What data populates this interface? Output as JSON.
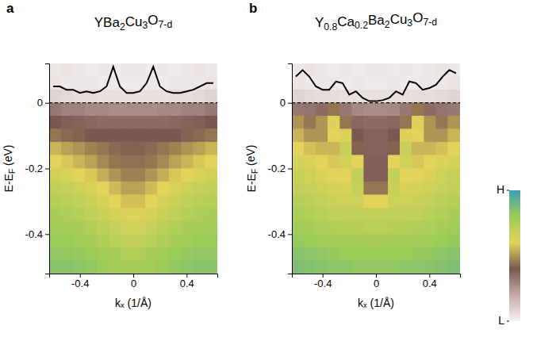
{
  "chart_data": [
    {
      "type": "heatmap",
      "panel": "a",
      "title": "YBa2Cu3O7-d",
      "x_label": "kₓ (1/Å)",
      "y_label": "E-EF (eV)",
      "xlim": [
        -0.63,
        0.63
      ],
      "ylim": [
        -0.52,
        0.12
      ],
      "xticks": [
        -0.4,
        0,
        0.4
      ],
      "yticks": [
        0,
        -0.2,
        -0.4
      ],
      "fermi_level": 0,
      "cell_x": [
        -0.585,
        -0.495,
        -0.405,
        -0.315,
        -0.225,
        -0.135,
        -0.045,
        0.045,
        0.135,
        0.225,
        0.315,
        0.405,
        0.495,
        0.585
      ],
      "cell_y": [
        0.1,
        0.06,
        0.02,
        -0.02,
        -0.06,
        -0.1,
        -0.14,
        -0.18,
        -0.22,
        -0.26,
        -0.3,
        -0.34,
        -0.38,
        -0.42,
        -0.46,
        -0.5
      ],
      "cells": [
        [
          0.03,
          0.04,
          0.03,
          0.02,
          0.03,
          0.02,
          0.03,
          0.03,
          0.02,
          0.03,
          0.02,
          0.03,
          0.04,
          0.03
        ],
        [
          0.04,
          0.03,
          0.03,
          0.03,
          0.02,
          0.03,
          0.02,
          0.02,
          0.03,
          0.02,
          0.03,
          0.03,
          0.03,
          0.04
        ],
        [
          0.08,
          0.07,
          0.06,
          0.06,
          0.05,
          0.05,
          0.05,
          0.05,
          0.05,
          0.05,
          0.06,
          0.06,
          0.07,
          0.08
        ],
        [
          0.32,
          0.3,
          0.3,
          0.28,
          0.28,
          0.27,
          0.27,
          0.27,
          0.27,
          0.28,
          0.28,
          0.3,
          0.3,
          0.32
        ],
        [
          0.4,
          0.38,
          0.37,
          0.36,
          0.35,
          0.35,
          0.35,
          0.35,
          0.35,
          0.35,
          0.36,
          0.37,
          0.38,
          0.4
        ],
        [
          0.45,
          0.43,
          0.42,
          0.4,
          0.4,
          0.4,
          0.4,
          0.4,
          0.4,
          0.4,
          0.4,
          0.42,
          0.43,
          0.45
        ],
        [
          0.55,
          0.52,
          0.5,
          0.47,
          0.45,
          0.43,
          0.42,
          0.42,
          0.43,
          0.45,
          0.47,
          0.5,
          0.52,
          0.55
        ],
        [
          0.6,
          0.58,
          0.55,
          0.52,
          0.48,
          0.45,
          0.44,
          0.44,
          0.45,
          0.48,
          0.52,
          0.55,
          0.58,
          0.6
        ],
        [
          0.65,
          0.63,
          0.6,
          0.58,
          0.54,
          0.5,
          0.47,
          0.47,
          0.5,
          0.54,
          0.58,
          0.6,
          0.63,
          0.65
        ],
        [
          0.7,
          0.68,
          0.66,
          0.63,
          0.6,
          0.56,
          0.52,
          0.52,
          0.56,
          0.6,
          0.63,
          0.66,
          0.68,
          0.7
        ],
        [
          0.73,
          0.72,
          0.7,
          0.67,
          0.64,
          0.6,
          0.57,
          0.57,
          0.6,
          0.64,
          0.67,
          0.7,
          0.72,
          0.73
        ],
        [
          0.76,
          0.75,
          0.73,
          0.7,
          0.67,
          0.64,
          0.62,
          0.62,
          0.64,
          0.67,
          0.7,
          0.73,
          0.75,
          0.76
        ],
        [
          0.78,
          0.77,
          0.76,
          0.74,
          0.71,
          0.68,
          0.66,
          0.66,
          0.68,
          0.71,
          0.74,
          0.76,
          0.77,
          0.78
        ],
        [
          0.8,
          0.8,
          0.78,
          0.77,
          0.75,
          0.72,
          0.7,
          0.7,
          0.72,
          0.75,
          0.77,
          0.78,
          0.8,
          0.8
        ],
        [
          0.82,
          0.82,
          0.81,
          0.8,
          0.78,
          0.76,
          0.74,
          0.74,
          0.76,
          0.78,
          0.8,
          0.81,
          0.82,
          0.82
        ],
        [
          0.84,
          0.84,
          0.83,
          0.82,
          0.8,
          0.78,
          0.77,
          0.77,
          0.78,
          0.8,
          0.82,
          0.83,
          0.84,
          0.84
        ]
      ],
      "x": [
        -0.6,
        -0.55,
        -0.5,
        -0.45,
        -0.4,
        -0.35,
        -0.3,
        -0.25,
        -0.2,
        -0.15,
        -0.1,
        -0.05,
        0,
        0.05,
        0.1,
        0.15,
        0.2,
        0.25,
        0.3,
        0.35,
        0.4,
        0.45,
        0.5,
        0.55,
        0.6
      ],
      "series": [
        {
          "type": "line",
          "color": "#000000",
          "values": [
            0.05,
            0.05,
            0.04,
            0.04,
            0.03,
            0.035,
            0.03,
            0.035,
            0.05,
            0.11,
            0.05,
            0.03,
            0.03,
            0.035,
            0.06,
            0.11,
            0.05,
            0.035,
            0.03,
            0.03,
            0.035,
            0.04,
            0.05,
            0.06,
            0.06
          ]
        }
      ]
    },
    {
      "type": "heatmap",
      "panel": "b",
      "title": "Y0.8Ca0.2Ba2Cu3O7-d",
      "x_label": "kₓ (1/Å)",
      "y_label": "E-EF (eV)",
      "xlim": [
        -0.63,
        0.63
      ],
      "ylim": [
        -0.52,
        0.12
      ],
      "xticks": [
        -0.4,
        0,
        0.4
      ],
      "yticks": [
        0,
        -0.2,
        -0.4
      ],
      "fermi_level": 0,
      "cell_x": [
        -0.585,
        -0.495,
        -0.405,
        -0.315,
        -0.225,
        -0.135,
        -0.045,
        0.045,
        0.135,
        0.225,
        0.315,
        0.405,
        0.495,
        0.585
      ],
      "cell_y": [
        0.1,
        0.06,
        0.02,
        -0.02,
        -0.06,
        -0.1,
        -0.14,
        -0.18,
        -0.22,
        -0.26,
        -0.3,
        -0.34,
        -0.38,
        -0.42,
        -0.46,
        -0.5
      ],
      "cells": [
        [
          0.03,
          0.04,
          0.03,
          0.02,
          0.03,
          0.02,
          0.03,
          0.03,
          0.02,
          0.03,
          0.02,
          0.03,
          0.04,
          0.03
        ],
        [
          0.04,
          0.03,
          0.03,
          0.03,
          0.02,
          0.03,
          0.02,
          0.02,
          0.03,
          0.02,
          0.03,
          0.03,
          0.03,
          0.04
        ],
        [
          0.08,
          0.07,
          0.06,
          0.06,
          0.05,
          0.05,
          0.05,
          0.05,
          0.05,
          0.05,
          0.06,
          0.06,
          0.07,
          0.08
        ],
        [
          0.32,
          0.33,
          0.35,
          0.45,
          0.32,
          0.28,
          0.27,
          0.27,
          0.28,
          0.32,
          0.45,
          0.35,
          0.33,
          0.32
        ],
        [
          0.5,
          0.45,
          0.5,
          0.62,
          0.45,
          0.36,
          0.35,
          0.35,
          0.36,
          0.45,
          0.62,
          0.5,
          0.45,
          0.5
        ],
        [
          0.55,
          0.5,
          0.5,
          0.6,
          0.62,
          0.4,
          0.37,
          0.37,
          0.4,
          0.62,
          0.6,
          0.5,
          0.5,
          0.55
        ],
        [
          0.6,
          0.57,
          0.55,
          0.55,
          0.68,
          0.42,
          0.37,
          0.37,
          0.42,
          0.68,
          0.55,
          0.55,
          0.57,
          0.6
        ],
        [
          0.64,
          0.62,
          0.6,
          0.58,
          0.65,
          0.6,
          0.38,
          0.38,
          0.6,
          0.65,
          0.58,
          0.6,
          0.62,
          0.64
        ],
        [
          0.68,
          0.66,
          0.62,
          0.6,
          0.6,
          0.7,
          0.38,
          0.38,
          0.7,
          0.6,
          0.6,
          0.62,
          0.66,
          0.68
        ],
        [
          0.7,
          0.68,
          0.66,
          0.64,
          0.63,
          0.68,
          0.45,
          0.45,
          0.68,
          0.63,
          0.64,
          0.66,
          0.68,
          0.7
        ],
        [
          0.73,
          0.71,
          0.69,
          0.67,
          0.66,
          0.66,
          0.6,
          0.6,
          0.66,
          0.66,
          0.67,
          0.69,
          0.71,
          0.73
        ],
        [
          0.76,
          0.74,
          0.72,
          0.7,
          0.7,
          0.7,
          0.7,
          0.7,
          0.7,
          0.7,
          0.7,
          0.72,
          0.74,
          0.76
        ],
        [
          0.79,
          0.77,
          0.75,
          0.74,
          0.73,
          0.73,
          0.72,
          0.72,
          0.73,
          0.73,
          0.74,
          0.75,
          0.77,
          0.79
        ],
        [
          0.81,
          0.8,
          0.79,
          0.78,
          0.77,
          0.77,
          0.76,
          0.76,
          0.77,
          0.77,
          0.78,
          0.79,
          0.8,
          0.81
        ],
        [
          0.84,
          0.83,
          0.82,
          0.81,
          0.8,
          0.8,
          0.8,
          0.8,
          0.8,
          0.8,
          0.81,
          0.82,
          0.83,
          0.84
        ],
        [
          0.86,
          0.85,
          0.84,
          0.83,
          0.83,
          0.82,
          0.82,
          0.82,
          0.82,
          0.83,
          0.83,
          0.84,
          0.85,
          0.86
        ]
      ],
      "x": [
        -0.6,
        -0.55,
        -0.5,
        -0.45,
        -0.4,
        -0.35,
        -0.3,
        -0.25,
        -0.2,
        -0.15,
        -0.1,
        -0.05,
        0,
        0.05,
        0.1,
        0.15,
        0.2,
        0.25,
        0.3,
        0.35,
        0.4,
        0.45,
        0.5,
        0.55,
        0.6
      ],
      "series": [
        {
          "type": "line",
          "color": "#000000",
          "values": [
            0.08,
            0.1,
            0.08,
            0.05,
            0.04,
            0.04,
            0.065,
            0.06,
            0.025,
            0.035,
            0.015,
            0.005,
            0.005,
            0.008,
            0.015,
            0.035,
            0.025,
            0.065,
            0.06,
            0.04,
            0.045,
            0.055,
            0.08,
            0.1,
            0.09
          ]
        }
      ],
      "colorbar": {
        "range": [
          0,
          1
        ],
        "ticks": [
          {
            "value": 1,
            "label": "H"
          },
          {
            "value": 0,
            "label": "L"
          }
        ]
      }
    }
  ]
}
